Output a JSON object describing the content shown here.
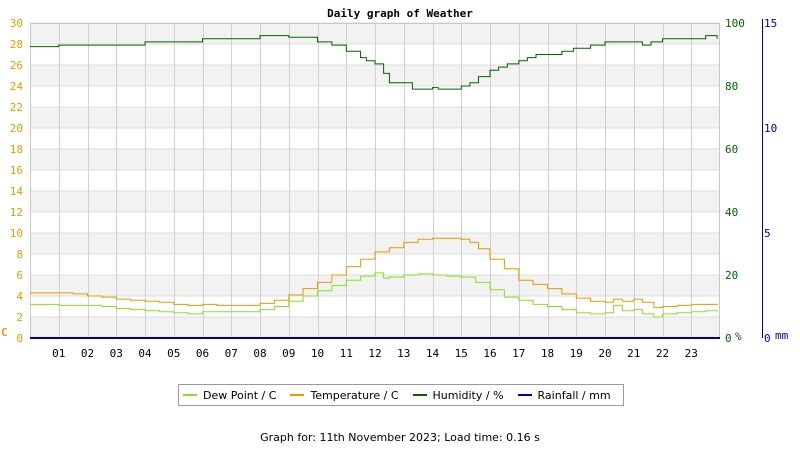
{
  "chart_data": {
    "type": "line",
    "title": "Daily graph of Weather",
    "x_tick_labels": [
      "01",
      "02",
      "03",
      "04",
      "05",
      "06",
      "07",
      "08",
      "09",
      "10",
      "11",
      "12",
      "13",
      "14",
      "15",
      "16",
      "17",
      "18",
      "19",
      "20",
      "21",
      "22",
      "23"
    ],
    "xlim": [
      0,
      24
    ],
    "left_axis": {
      "ylim": [
        0,
        30
      ],
      "ticks": [
        0,
        2,
        4,
        6,
        8,
        10,
        12,
        14,
        16,
        18,
        20,
        22,
        24,
        26,
        28,
        30
      ],
      "unit_label": "C",
      "color": "#e89a00"
    },
    "humidity_axis": {
      "ylim": [
        0,
        100
      ],
      "ticks": [
        0,
        20,
        40,
        60,
        80,
        100
      ],
      "unit_label": "%",
      "color": "#006400"
    },
    "rain_axis": {
      "ylim": [
        0,
        15
      ],
      "ticks": [
        0,
        5,
        10,
        15
      ],
      "unit_label": "mm",
      "color": "#0000aa"
    },
    "grid": true,
    "legend_position": "bottom",
    "series": [
      {
        "name": "Dew Point / C",
        "color": "#88e022",
        "axis": "left",
        "x": [
          0,
          0.5,
          1,
          1.5,
          2,
          2.5,
          3,
          3.5,
          4,
          4.5,
          5,
          5.5,
          6,
          6.5,
          7,
          7.5,
          8,
          8.5,
          9,
          9.5,
          10,
          10.5,
          11,
          11.5,
          12,
          12.3,
          12.5,
          13,
          13.5,
          14,
          14.5,
          15,
          15.5,
          16,
          16.5,
          17,
          17.5,
          18,
          18.5,
          19,
          19.5,
          20,
          20.3,
          20.6,
          21,
          21.3,
          21.7,
          22,
          22.5,
          23,
          23.5,
          23.9
        ],
        "values": [
          3.2,
          3.2,
          3.1,
          3.1,
          3.1,
          3.0,
          2.8,
          2.7,
          2.6,
          2.5,
          2.4,
          2.3,
          2.5,
          2.5,
          2.5,
          2.5,
          2.7,
          3.0,
          3.5,
          4.0,
          4.5,
          5.0,
          5.5,
          5.9,
          6.2,
          5.7,
          5.8,
          6.0,
          6.1,
          6.0,
          5.9,
          5.8,
          5.3,
          4.6,
          3.9,
          3.6,
          3.2,
          3.0,
          2.7,
          2.4,
          2.3,
          2.4,
          3.1,
          2.6,
          2.7,
          2.3,
          2.0,
          2.3,
          2.4,
          2.5,
          2.6,
          2.5
        ]
      },
      {
        "name": "Temperature / C",
        "color": "#e89a00",
        "axis": "left",
        "x": [
          0,
          0.5,
          1,
          1.5,
          2,
          2.5,
          3,
          3.5,
          4,
          4.5,
          5,
          5.5,
          6,
          6.5,
          7,
          7.5,
          8,
          8.5,
          9,
          9.5,
          10,
          10.5,
          11,
          11.5,
          12,
          12.5,
          13,
          13.5,
          14,
          14.5,
          15,
          15.3,
          15.6,
          16,
          16.5,
          17,
          17.5,
          18,
          18.5,
          19,
          19.5,
          20,
          20.3,
          20.6,
          21,
          21.3,
          21.7,
          22,
          22.5,
          23,
          23.5,
          23.9
        ],
        "values": [
          4.3,
          4.3,
          4.3,
          4.2,
          4.0,
          3.9,
          3.7,
          3.6,
          3.5,
          3.4,
          3.2,
          3.1,
          3.2,
          3.1,
          3.1,
          3.1,
          3.3,
          3.6,
          4.1,
          4.7,
          5.3,
          6.0,
          6.8,
          7.5,
          8.2,
          8.6,
          9.1,
          9.4,
          9.5,
          9.5,
          9.4,
          9.1,
          8.5,
          7.5,
          6.6,
          5.5,
          5.1,
          4.7,
          4.2,
          3.8,
          3.5,
          3.4,
          3.7,
          3.5,
          3.7,
          3.4,
          2.9,
          3.0,
          3.1,
          3.2,
          3.2,
          3.1
        ]
      },
      {
        "name": "Humidity / %",
        "color": "#006400",
        "axis": "humidity",
        "x": [
          0,
          0.9,
          1,
          1.8,
          2,
          3.9,
          4,
          4.9,
          5,
          5.9,
          6,
          7.9,
          8,
          9,
          10,
          10.5,
          11,
          11.5,
          11.7,
          12,
          12.3,
          12.5,
          13,
          13.3,
          13.7,
          14,
          14.2,
          14.5,
          14.9,
          15,
          15.3,
          15.6,
          16,
          16.3,
          16.6,
          17,
          17.3,
          17.6,
          18,
          18.5,
          18.9,
          19.5,
          20,
          20.5,
          20.9,
          21.3,
          21.6,
          22,
          22.5,
          23,
          23.5,
          23.9
        ],
        "values": [
          92.5,
          92.5,
          93,
          93,
          93,
          93,
          94,
          94,
          94,
          94,
          95,
          95,
          96,
          95.5,
          94,
          93,
          91,
          89,
          88,
          87,
          84,
          81,
          81,
          79,
          79,
          79.5,
          79,
          79,
          79,
          80,
          81,
          83,
          85,
          86,
          87,
          88,
          89,
          90,
          90,
          91,
          92,
          93,
          94,
          94,
          94,
          93,
          94,
          95,
          95,
          95,
          96,
          95
        ]
      },
      {
        "name": "Rainfall / mm",
        "color": "#0000aa",
        "axis": "rain",
        "x": [
          0,
          24
        ],
        "values": [
          0,
          0
        ]
      }
    ]
  },
  "footer": {
    "text": "Graph for: 11th November 2023; Load time: 0.16 s"
  }
}
